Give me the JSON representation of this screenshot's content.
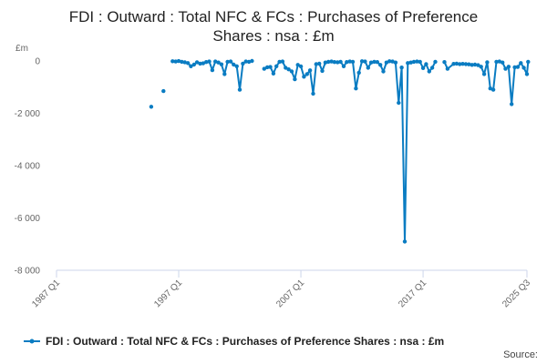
{
  "chart_data": {
    "type": "line",
    "title_line1": "FDI : Outward : Total NFC & FCs : Purchases of Preference",
    "title_line2": "Shares : nsa : £m",
    "ylabel": "£m",
    "ylim": [
      -8000,
      0
    ],
    "yticks": [
      0,
      -2000,
      -4000,
      -6000,
      -8000
    ],
    "ytick_labels": [
      "0",
      "-2 000",
      "-4 000",
      "-6 000",
      "-8 000"
    ],
    "xlim": [
      1987.0,
      2025.5
    ],
    "xticks": [
      1987.0,
      1997.0,
      2007.0,
      2017.0,
      2025.5
    ],
    "xtick_labels": [
      "1987 Q1",
      "1997 Q1",
      "2007 Q1",
      "2017 Q1",
      "2025 Q3"
    ],
    "grid": false,
    "legend_position": "bottom",
    "series": [
      {
        "name": "FDI : Outward : Total NFC & FCs : Purchases of Preference Shares : nsa : £m",
        "color": "#0a7cc2",
        "points": [
          [
            1994.75,
            -1750
          ],
          [
            1995.75,
            -1150
          ],
          [
            1996.5,
            -10
          ],
          [
            1996.75,
            -20
          ],
          [
            1997.0,
            -5
          ],
          [
            1997.25,
            -30
          ],
          [
            1997.5,
            -50
          ],
          [
            1997.75,
            -80
          ],
          [
            1998.0,
            -200
          ],
          [
            1998.25,
            -140
          ],
          [
            1998.5,
            -50
          ],
          [
            1998.75,
            -100
          ],
          [
            1999.0,
            -90
          ],
          [
            1999.25,
            -40
          ],
          [
            1999.5,
            -20
          ],
          [
            1999.75,
            -350
          ],
          [
            2000.0,
            -20
          ],
          [
            2000.25,
            -60
          ],
          [
            2000.5,
            -130
          ],
          [
            2000.75,
            -500
          ],
          [
            2001.0,
            -30
          ],
          [
            2001.25,
            -20
          ],
          [
            2001.5,
            -140
          ],
          [
            2001.75,
            -200
          ],
          [
            2002.0,
            -1100
          ],
          [
            2002.25,
            -100
          ],
          [
            2002.5,
            -20
          ],
          [
            2002.75,
            -30
          ],
          [
            2003.0,
            0
          ],
          [
            2004.0,
            -300
          ],
          [
            2004.25,
            -240
          ],
          [
            2004.5,
            -230
          ],
          [
            2004.75,
            -480
          ],
          [
            2005.0,
            -200
          ],
          [
            2005.25,
            -30
          ],
          [
            2005.5,
            -20
          ],
          [
            2005.75,
            -260
          ],
          [
            2006.0,
            -320
          ],
          [
            2006.25,
            -400
          ],
          [
            2006.5,
            -700
          ],
          [
            2006.75,
            -150
          ],
          [
            2007.0,
            -210
          ],
          [
            2007.25,
            -600
          ],
          [
            2007.5,
            -500
          ],
          [
            2007.75,
            -360
          ],
          [
            2008.0,
            -1250
          ],
          [
            2008.25,
            -120
          ],
          [
            2008.5,
            -100
          ],
          [
            2008.75,
            -380
          ],
          [
            2009.0,
            -60
          ],
          [
            2009.25,
            -30
          ],
          [
            2009.5,
            -20
          ],
          [
            2009.75,
            -40
          ],
          [
            2010.0,
            -50
          ],
          [
            2010.25,
            -30
          ],
          [
            2010.5,
            -200
          ],
          [
            2010.75,
            -40
          ],
          [
            2011.0,
            -20
          ],
          [
            2011.25,
            -30
          ],
          [
            2011.5,
            -1050
          ],
          [
            2011.75,
            -450
          ],
          [
            2012.0,
            -10
          ],
          [
            2012.25,
            -20
          ],
          [
            2012.5,
            -260
          ],
          [
            2012.75,
            -60
          ],
          [
            2013.0,
            -30
          ],
          [
            2013.25,
            -40
          ],
          [
            2013.5,
            -150
          ],
          [
            2013.75,
            -400
          ],
          [
            2014.0,
            -60
          ],
          [
            2014.25,
            -10
          ],
          [
            2014.5,
            -20
          ],
          [
            2014.75,
            -60
          ],
          [
            2015.0,
            -1600
          ],
          [
            2015.25,
            -250
          ],
          [
            2015.5,
            -6900
          ],
          [
            2015.75,
            -80
          ],
          [
            2016.0,
            -60
          ],
          [
            2016.25,
            -30
          ],
          [
            2016.5,
            -20
          ],
          [
            2016.75,
            -30
          ],
          [
            2017.0,
            -270
          ],
          [
            2017.25,
            -120
          ],
          [
            2017.5,
            -400
          ],
          [
            2017.75,
            -260
          ],
          [
            2018.0,
            -30
          ],
          [
            2018.75,
            -40
          ],
          [
            2019.0,
            -300
          ],
          [
            2019.5,
            -110
          ],
          [
            2019.75,
            -100
          ],
          [
            2020.0,
            -120
          ],
          [
            2020.25,
            -110
          ],
          [
            2020.5,
            -120
          ],
          [
            2020.75,
            -130
          ],
          [
            2021.0,
            -150
          ],
          [
            2021.25,
            -140
          ],
          [
            2021.5,
            -160
          ],
          [
            2021.75,
            -220
          ],
          [
            2022.0,
            -500
          ],
          [
            2022.25,
            -50
          ],
          [
            2022.5,
            -1050
          ],
          [
            2022.75,
            -1100
          ],
          [
            2023.0,
            -30
          ],
          [
            2023.25,
            -20
          ],
          [
            2023.5,
            -60
          ],
          [
            2023.75,
            -300
          ],
          [
            2024.0,
            -220
          ],
          [
            2024.25,
            -1650
          ],
          [
            2024.5,
            -240
          ],
          [
            2024.75,
            -230
          ],
          [
            2025.0,
            -80
          ],
          [
            2025.25,
            -260
          ],
          [
            2025.5,
            -500
          ],
          [
            2025.6,
            -30
          ]
        ]
      }
    ]
  },
  "legend": {
    "label": "FDI : Outward : Total NFC & FCs : Purchases of Preference Shares : nsa : £m"
  },
  "footer": {
    "source_label": "Source:"
  }
}
